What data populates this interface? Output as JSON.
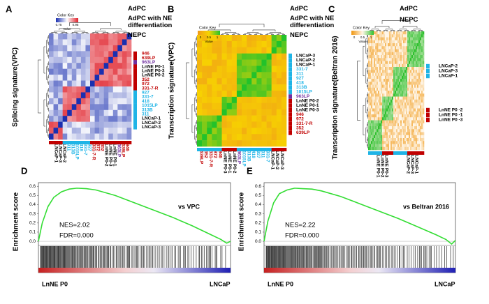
{
  "panels": [
    {
      "letter": "A",
      "ylabel": "Splicing signature(VPC)",
      "legend": [
        {
          "text": "AdPC",
          "color": "#1fb4e6"
        },
        {
          "text": "AdPC with NE differentiation",
          "color": "#7030a0"
        },
        {
          "text": "NEPC",
          "color": "#c00000"
        }
      ],
      "color_key": {
        "title": "Color Key",
        "ticks": [
          0.75,
          0.95
        ],
        "value_label": "Value"
      },
      "rows": [
        {
          "text": "946",
          "color": "#c00000"
        },
        {
          "text": "639LP",
          "color": "#c00000"
        },
        {
          "text": "963LP",
          "color": "#7030a0"
        },
        {
          "text": "LnNE P0-1",
          "color": "#000000"
        },
        {
          "text": "LnNE P0-3",
          "color": "#000000"
        },
        {
          "text": "LnNE P0-2",
          "color": "#000000"
        },
        {
          "text": "352",
          "color": "#c00000"
        },
        {
          "text": "972",
          "color": "#c00000"
        },
        {
          "text": "331-7-R",
          "color": "#c00000"
        },
        {
          "text": "927",
          "color": "#1fb4e6"
        },
        {
          "text": "331-7",
          "color": "#1fb4e6"
        },
        {
          "text": "418",
          "color": "#1fb4e6"
        },
        {
          "text": "1015LP",
          "color": "#1fb4e6"
        },
        {
          "text": "313B",
          "color": "#1fb4e6"
        },
        {
          "text": "311",
          "color": "#1fb4e6"
        },
        {
          "text": "LNCaP-1",
          "color": "#000000"
        },
        {
          "text": "LNCaP-2",
          "color": "#000000"
        },
        {
          "text": "LNCaP-3",
          "color": "#000000"
        }
      ],
      "cols": [
        {
          "text": "LNCaP-1",
          "color": "#000000"
        },
        {
          "text": "LNCaP-3",
          "color": "#000000"
        },
        {
          "text": "LNCaP-2",
          "color": "#000000"
        },
        {
          "text": "311",
          "color": "#1fb4e6"
        },
        {
          "text": "313B",
          "color": "#1fb4e6"
        },
        {
          "text": "1015LP",
          "color": "#1fb4e6"
        },
        {
          "text": "418",
          "color": "#1fb4e6"
        },
        {
          "text": "331-7",
          "color": "#1fb4e6"
        },
        {
          "text": "927",
          "color": "#1fb4e6"
        },
        {
          "text": "331-7-R",
          "color": "#c00000"
        },
        {
          "text": "972",
          "color": "#c00000"
        },
        {
          "text": "352",
          "color": "#c00000"
        },
        {
          "text": "LnNE P0-2",
          "color": "#000000"
        },
        {
          "text": "LnNE P0-3",
          "color": "#000000"
        },
        {
          "text": "LnNE P0-1",
          "color": "#000000"
        },
        {
          "text": "963LP",
          "color": "#7030a0"
        },
        {
          "text": "639LP",
          "color": "#c00000"
        },
        {
          "text": "946",
          "color": "#c00000"
        }
      ]
    },
    {
      "letter": "B",
      "ylabel": "Transcription signature(VPC)",
      "legend": [
        {
          "text": "AdPC",
          "color": "#1fb4e6"
        },
        {
          "text": "AdPC with NE differentiation",
          "color": "#7030a0"
        },
        {
          "text": "NEPC",
          "color": "#c00000"
        }
      ],
      "color_key": {
        "title": "Color Key",
        "ticks": [
          0,
          0.5,
          1
        ],
        "value_label": "Value"
      },
      "rows": [
        {
          "text": "LNCaP-3",
          "color": "#000000"
        },
        {
          "text": "LNCaP-2",
          "color": "#000000"
        },
        {
          "text": "LNCaP-1",
          "color": "#000000"
        },
        {
          "text": "331-7",
          "color": "#1fb4e6"
        },
        {
          "text": "311",
          "color": "#1fb4e6"
        },
        {
          "text": "927",
          "color": "#1fb4e6"
        },
        {
          "text": "418",
          "color": "#1fb4e6"
        },
        {
          "text": "313B",
          "color": "#1fb4e6"
        },
        {
          "text": "1015LP",
          "color": "#1fb4e6"
        },
        {
          "text": "963LP",
          "color": "#7030a0"
        },
        {
          "text": "LnNE P0-2",
          "color": "#000000"
        },
        {
          "text": "LnNE P0-1",
          "color": "#000000"
        },
        {
          "text": "LnNE P0-3",
          "color": "#000000"
        },
        {
          "text": "946",
          "color": "#c00000"
        },
        {
          "text": "972",
          "color": "#c00000"
        },
        {
          "text": "331-7-R",
          "color": "#c00000"
        },
        {
          "text": "352",
          "color": "#c00000"
        },
        {
          "text": "639LP",
          "color": "#c00000"
        }
      ],
      "cols": [
        {
          "text": "639LP",
          "color": "#c00000"
        },
        {
          "text": "352",
          "color": "#c00000"
        },
        {
          "text": "331-7-R",
          "color": "#c00000"
        },
        {
          "text": "972",
          "color": "#c00000"
        },
        {
          "text": "946",
          "color": "#c00000"
        },
        {
          "text": "LnNE P0-3",
          "color": "#000000"
        },
        {
          "text": "LnNE P0-1",
          "color": "#000000"
        },
        {
          "text": "LnNE P0-2",
          "color": "#000000"
        },
        {
          "text": "963LP",
          "color": "#7030a0"
        },
        {
          "text": "1015LP",
          "color": "#1fb4e6"
        },
        {
          "text": "313B",
          "color": "#1fb4e6"
        },
        {
          "text": "418",
          "color": "#1fb4e6"
        },
        {
          "text": "927",
          "color": "#1fb4e6"
        },
        {
          "text": "311",
          "color": "#1fb4e6"
        },
        {
          "text": "331-7",
          "color": "#1fb4e6"
        },
        {
          "text": "LNCaP-1",
          "color": "#000000"
        },
        {
          "text": "LNCaP-2",
          "color": "#000000"
        },
        {
          "text": "LNCaP-3",
          "color": "#000000"
        }
      ]
    },
    {
      "letter": "C",
      "ylabel": "Transcription signature(Beltran 2016)",
      "legend": [
        {
          "text": "AdPC",
          "color": "#1fb4e6"
        },
        {
          "text": "NEPC",
          "color": "#c00000"
        }
      ],
      "color_key": {
        "title": "Color Key",
        "ticks": [
          0,
          0.5,
          1
        ],
        "value_label": "Value"
      },
      "rows": [
        {
          "text": "LNCaP-2",
          "color": "#000000"
        },
        {
          "text": "LNCaP-3",
          "color": "#000000"
        },
        {
          "text": "LNCaP-1",
          "color": "#000000"
        },
        {
          "text": "LnNE P0 -2",
          "color": "#000000"
        },
        {
          "text": "LnNE P0 -1",
          "color": "#000000"
        },
        {
          "text": "LnNE P0 -3",
          "color": "#000000"
        }
      ],
      "cols": [
        {
          "text": "LnNE P0-1",
          "color": "#000000"
        },
        {
          "text": "LnNE P0-2",
          "color": "#000000"
        },
        {
          "text": "LnNE P0-3",
          "color": "#000000"
        },
        {
          "text": "LNCaP-2",
          "color": "#000000"
        },
        {
          "text": "LNCaP-3",
          "color": "#000000"
        },
        {
          "text": "LNCaP-1",
          "color": "#000000"
        }
      ]
    }
  ],
  "chart_data": [
    {
      "type": "line",
      "panel_label": "D",
      "ylabel": "Enrichment score",
      "annotation": "vs VPC",
      "nes": "NES=2.02",
      "fdr": "FDR=0.000",
      "left_label": "LnNE P0",
      "right_label": "LNCaP",
      "color": "#33dd33",
      "x": [
        0,
        2,
        5,
        8,
        12,
        16,
        20,
        25,
        30,
        40,
        50,
        60,
        70,
        80,
        90,
        95,
        98,
        100
      ],
      "values": [
        0,
        0.2,
        0.38,
        0.48,
        0.54,
        0.57,
        0.58,
        0.575,
        0.56,
        0.5,
        0.42,
        0.34,
        0.26,
        0.17,
        0.07,
        0.02,
        -0.02,
        0
      ],
      "xlim": [
        0,
        100
      ],
      "ylim": [
        -0.03,
        0.64
      ],
      "yticks": [
        {
          "value": 0,
          "label": "0.0"
        },
        0.1,
        0.2,
        0.3,
        0.4,
        0.5,
        0.6
      ]
    },
    {
      "type": "line",
      "panel_label": "E",
      "ylabel": "Enrichment score",
      "annotation": "vs Beltran 2016",
      "nes": "NES=2.22",
      "fdr": "FDR=0.000",
      "left_label": "LnNE P0",
      "right_label": "LNCaP",
      "color": "#33dd33",
      "x": [
        0,
        2,
        5,
        8,
        12,
        16,
        20,
        25,
        30,
        40,
        50,
        60,
        70,
        80,
        90,
        95,
        98,
        100
      ],
      "values": [
        0,
        0.22,
        0.42,
        0.52,
        0.56,
        0.58,
        0.575,
        0.57,
        0.55,
        0.49,
        0.41,
        0.33,
        0.25,
        0.16,
        0.07,
        0.02,
        -0.03,
        0.01
      ],
      "xlim": [
        0,
        100
      ],
      "ylim": [
        -0.03,
        0.64
      ],
      "yticks": [
        {
          "value": 0,
          "label": "0.0"
        },
        0.1,
        0.2,
        0.3,
        0.4,
        0.5,
        0.6
      ]
    }
  ]
}
